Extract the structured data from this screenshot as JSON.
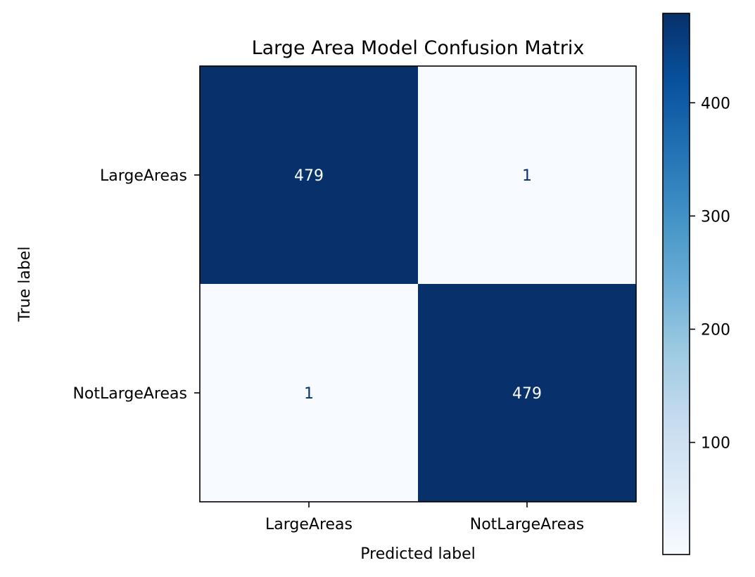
{
  "chart_data": {
    "type": "heatmap",
    "title": "Large Area Model Confusion Matrix",
    "xlabel": "Predicted label",
    "ylabel": "True label",
    "x_categories": [
      "LargeAreas",
      "NotLargeAreas"
    ],
    "y_categories": [
      "LargeAreas",
      "NotLargeAreas"
    ],
    "matrix": [
      [
        479,
        1
      ],
      [
        1,
        479
      ]
    ],
    "colormap": "Blues",
    "colorbar": {
      "min": 1,
      "max": 479,
      "ticks": [
        100,
        200,
        300,
        400
      ],
      "tick_labels": [
        "100",
        "200",
        "300",
        "400"
      ]
    },
    "colors": {
      "high": "#08306b",
      "low": "#f7fbff",
      "text_on_dark": "#ffffff",
      "text_on_light": "#08306b"
    }
  }
}
